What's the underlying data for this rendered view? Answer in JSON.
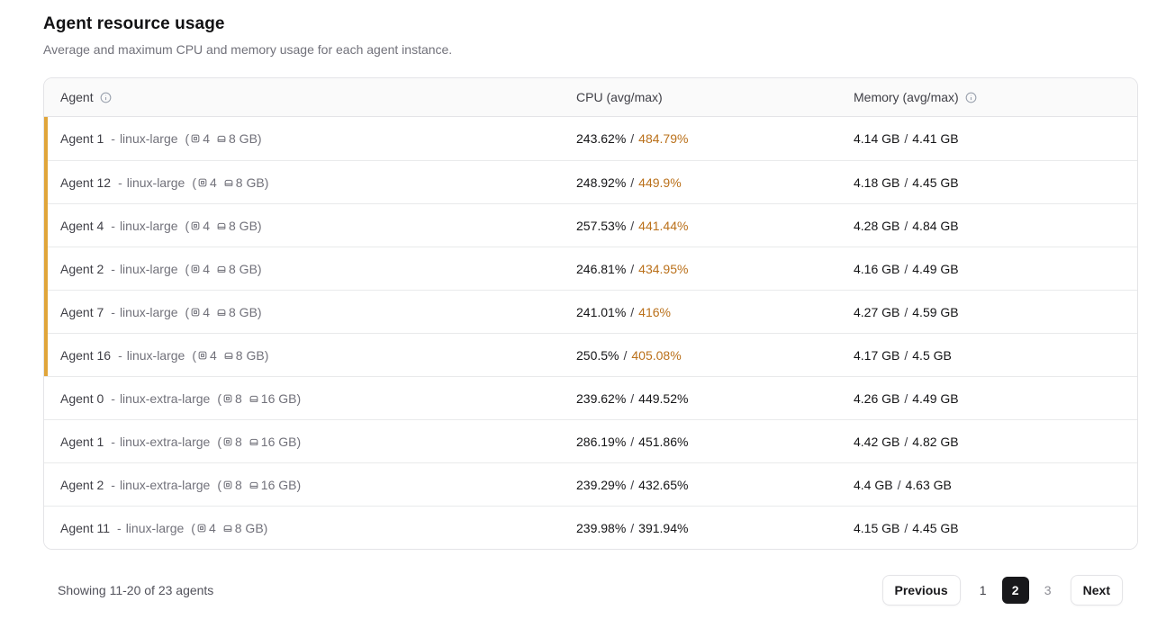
{
  "page": {
    "title": "Agent resource usage",
    "subtitle": "Average and maximum CPU and memory usage for each agent instance."
  },
  "table": {
    "columns": {
      "agent": "Agent",
      "cpu": "CPU (avg/max)",
      "memory": "Memory (avg/max)"
    },
    "format": {
      "type_dash": "-",
      "spec_open": "(",
      "spec_close": ")",
      "separator": "/"
    },
    "rows": [
      {
        "name": "Agent 1",
        "type": "linux-large",
        "cpus": "4",
        "memory": "8 GB",
        "cpu_avg": "243.62%",
        "cpu_max": "484.79%",
        "mem_avg": "4.14 GB",
        "mem_max": "4.41 GB",
        "flagged": true
      },
      {
        "name": "Agent 12",
        "type": "linux-large",
        "cpus": "4",
        "memory": "8 GB",
        "cpu_avg": "248.92%",
        "cpu_max": "449.9%",
        "mem_avg": "4.18 GB",
        "mem_max": "4.45 GB",
        "flagged": true
      },
      {
        "name": "Agent 4",
        "type": "linux-large",
        "cpus": "4",
        "memory": "8 GB",
        "cpu_avg": "257.53%",
        "cpu_max": "441.44%",
        "mem_avg": "4.28 GB",
        "mem_max": "4.84 GB",
        "flagged": true
      },
      {
        "name": "Agent 2",
        "type": "linux-large",
        "cpus": "4",
        "memory": "8 GB",
        "cpu_avg": "246.81%",
        "cpu_max": "434.95%",
        "mem_avg": "4.16 GB",
        "mem_max": "4.49 GB",
        "flagged": true
      },
      {
        "name": "Agent 7",
        "type": "linux-large",
        "cpus": "4",
        "memory": "8 GB",
        "cpu_avg": "241.01%",
        "cpu_max": "416%",
        "mem_avg": "4.27 GB",
        "mem_max": "4.59 GB",
        "flagged": true
      },
      {
        "name": "Agent 16",
        "type": "linux-large",
        "cpus": "4",
        "memory": "8 GB",
        "cpu_avg": "250.5%",
        "cpu_max": "405.08%",
        "mem_avg": "4.17 GB",
        "mem_max": "4.5 GB",
        "flagged": true
      },
      {
        "name": "Agent 0",
        "type": "linux-extra-large",
        "cpus": "8",
        "memory": "16 GB",
        "cpu_avg": "239.62%",
        "cpu_max": "449.52%",
        "mem_avg": "4.26 GB",
        "mem_max": "4.49 GB",
        "flagged": false
      },
      {
        "name": "Agent 1",
        "type": "linux-extra-large",
        "cpus": "8",
        "memory": "16 GB",
        "cpu_avg": "286.19%",
        "cpu_max": "451.86%",
        "mem_avg": "4.42 GB",
        "mem_max": "4.82 GB",
        "flagged": false
      },
      {
        "name": "Agent 2",
        "type": "linux-extra-large",
        "cpus": "8",
        "memory": "16 GB",
        "cpu_avg": "239.29%",
        "cpu_max": "432.65%",
        "mem_avg": "4.4 GB",
        "mem_max": "4.63 GB",
        "flagged": false
      },
      {
        "name": "Agent 11",
        "type": "linux-large",
        "cpus": "4",
        "memory": "8 GB",
        "cpu_avg": "239.98%",
        "cpu_max": "391.94%",
        "mem_avg": "4.15 GB",
        "mem_max": "4.45 GB",
        "flagged": false
      }
    ]
  },
  "footer": {
    "showing_text": "Showing 11-20 of 23 agents"
  },
  "pagination": {
    "previous_label": "Previous",
    "next_label": "Next",
    "pages": [
      {
        "label": "1",
        "active": false,
        "muted": false
      },
      {
        "label": "2",
        "active": true,
        "muted": false
      },
      {
        "label": "3",
        "active": false,
        "muted": true
      }
    ]
  },
  "colors": {
    "flag_bar": "#e0a53a",
    "cpu_max_alert": "#ba701a",
    "active_page_bg": "#18181b"
  }
}
